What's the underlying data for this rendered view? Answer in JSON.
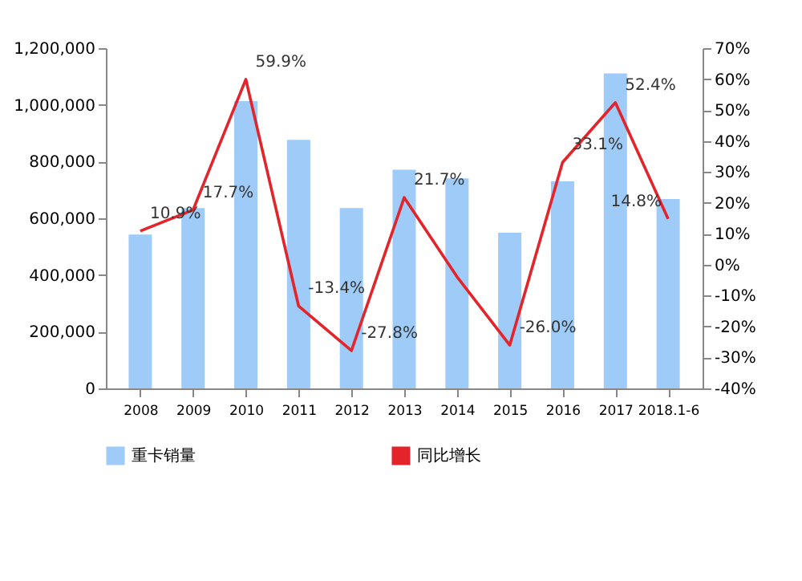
{
  "chart_data": {
    "type": "bar",
    "categories": [
      "2008",
      "2009",
      "2010",
      "2011",
      "2012",
      "2013",
      "2014",
      "2015",
      "2016",
      "2017",
      "2018.1-6"
    ],
    "series": [
      {
        "name": "重卡销量",
        "color": "#9ecbf7",
        "values": [
          543000,
          636000,
          1013000,
          877000,
          636000,
          771000,
          741000,
          549000,
          730000,
          1111000,
          668000
        ]
      },
      {
        "name": "同比增长",
        "type": "line",
        "axis": "y2",
        "color": "#e3242b",
        "values": [
          10.9,
          17.7,
          59.9,
          -13.4,
          -27.8,
          21.7,
          -3.9,
          -26.0,
          33.1,
          52.4,
          14.8
        ],
        "value_labels": [
          "10.9%",
          "17.7%",
          "59.9%",
          "-13.4%",
          "-27.8%",
          "21.7%",
          null,
          "-26.0%",
          "33.1%",
          "52.4%",
          "14.8%"
        ]
      }
    ],
    "ylim": [
      0,
      1200000
    ],
    "yticks": [
      0,
      {
        "value": 200000,
        "label": "200,000"
      },
      {
        "value": 400000,
        "label": "400,000"
      },
      {
        "value": 600000,
        "label": "600,000"
      },
      {
        "value": 800000,
        "label": "800,000"
      },
      {
        "value": 1000000,
        "label": "1,000,000"
      },
      {
        "value": 1200000,
        "label": "1,200,000"
      }
    ],
    "y2lim": [
      -40,
      70
    ],
    "y2ticks": [
      {
        "value": -40,
        "label": "-40%"
      },
      {
        "value": -30,
        "label": "-30%"
      },
      {
        "value": -20,
        "label": "-20%"
      },
      {
        "value": -10,
        "label": "-10%"
      },
      {
        "value": 0,
        "label": "0%"
      },
      {
        "value": 10,
        "label": "10%"
      },
      {
        "value": 20,
        "label": "20%"
      },
      {
        "value": 30,
        "label": "30%"
      },
      {
        "value": 40,
        "label": "40%"
      },
      {
        "value": 50,
        "label": "50%"
      },
      {
        "value": 60,
        "label": "60%"
      },
      {
        "value": 70,
        "label": "70%"
      }
    ],
    "grid": false,
    "legend": "bottom",
    "marker": "none"
  }
}
